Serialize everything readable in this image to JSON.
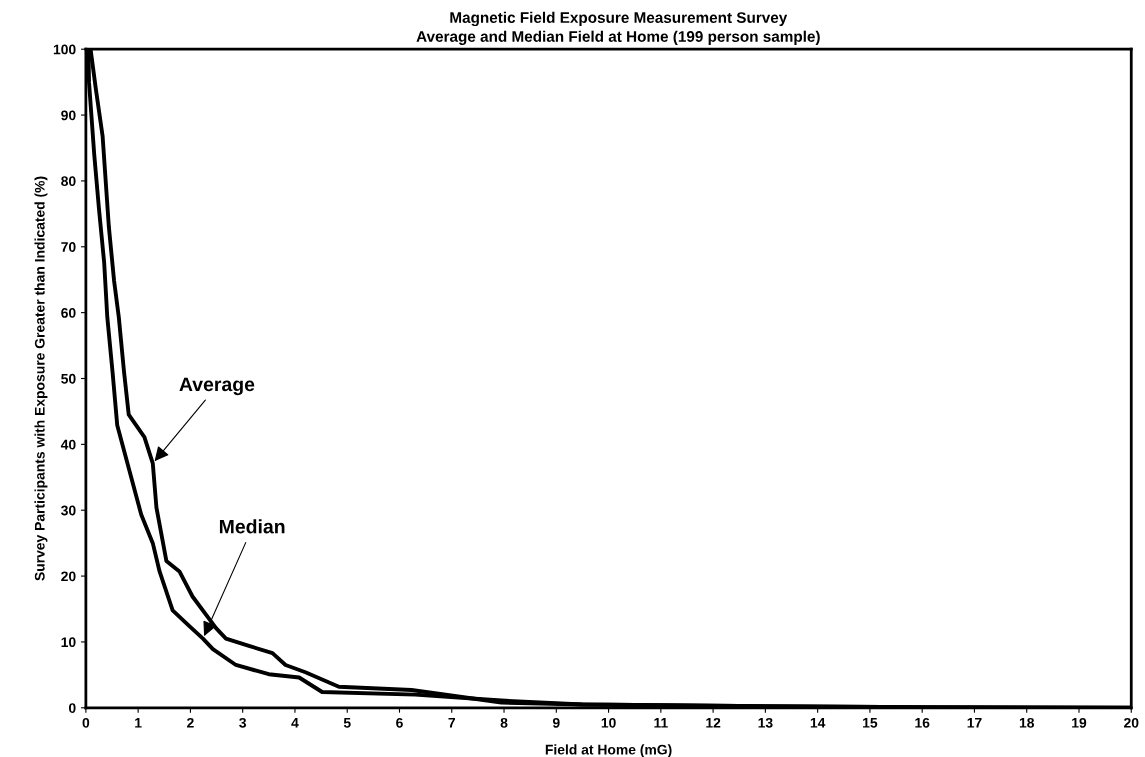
{
  "chart_data": {
    "type": "line",
    "title": "Magnetic Field Exposure Measurement Survey",
    "subtitle": "Average and Median Field at Home (199 person sample)",
    "xlabel": "Field at Home (mG)",
    "ylabel": "Survey Participants with Exposure Greater than Indicated (%)",
    "series": [
      {
        "color": "#000000",
        "x": [
          0.05,
          0.09,
          0.19,
          0.32,
          0.44,
          0.54,
          0.63,
          0.73,
          0.82,
          1.12,
          1.28,
          1.35,
          1.54,
          1.79,
          2.04,
          2.49,
          2.68,
          3.12,
          3.57,
          3.82,
          4.2,
          4.84,
          6.23,
          7.95,
          9.5,
          12,
          16,
          20
        ],
        "values": [
          100,
          100,
          94,
          86.8,
          73,
          64.8,
          59.3,
          51,
          44.5,
          41.1,
          37.1,
          30.4,
          22.3,
          20.7,
          16.9,
          12.1,
          10.5,
          9.4,
          8.3,
          6.5,
          5.4,
          3.2,
          2.7,
          0.8,
          0.5,
          0.3,
          0.1,
          0
        ]
      },
      {
        "color": "#000000",
        "x": [
          0.05,
          0.06,
          0.16,
          0.25,
          0.35,
          0.41,
          0.51,
          0.6,
          0.84,
          1.06,
          1.28,
          1.41,
          1.66,
          1.98,
          2.24,
          2.43,
          2.87,
          3.5,
          4.08,
          4.52,
          6.3,
          7.95,
          9.5,
          12,
          16,
          20
        ],
        "values": [
          100,
          95,
          84,
          75.8,
          67.6,
          59.3,
          51,
          42.9,
          35.8,
          29.3,
          25,
          20.7,
          14.8,
          12.4,
          10.5,
          8.9,
          6.5,
          5.1,
          4.6,
          2.4,
          2,
          1.1,
          0.5,
          0.3,
          0.1,
          0
        ]
      }
    ],
    "annotations": [
      {
        "text": "Average",
        "x": 1.28,
        "y": 37.1
      },
      {
        "text": "Median",
        "x": 2.24,
        "y": 10.5
      }
    ],
    "xlim": [
      0,
      20
    ],
    "xticks": [
      0,
      1,
      2,
      3,
      4,
      5,
      6,
      7,
      8,
      9,
      10,
      11,
      12,
      13,
      14,
      15,
      16,
      17,
      18,
      19,
      20
    ],
    "ylim": [
      0,
      100
    ],
    "yticks": [
      0,
      10,
      20,
      30,
      40,
      50,
      60,
      70,
      80,
      90,
      100
    ],
    "grid": false,
    "legend": false,
    "marker": "none",
    "line_style": "solid"
  }
}
